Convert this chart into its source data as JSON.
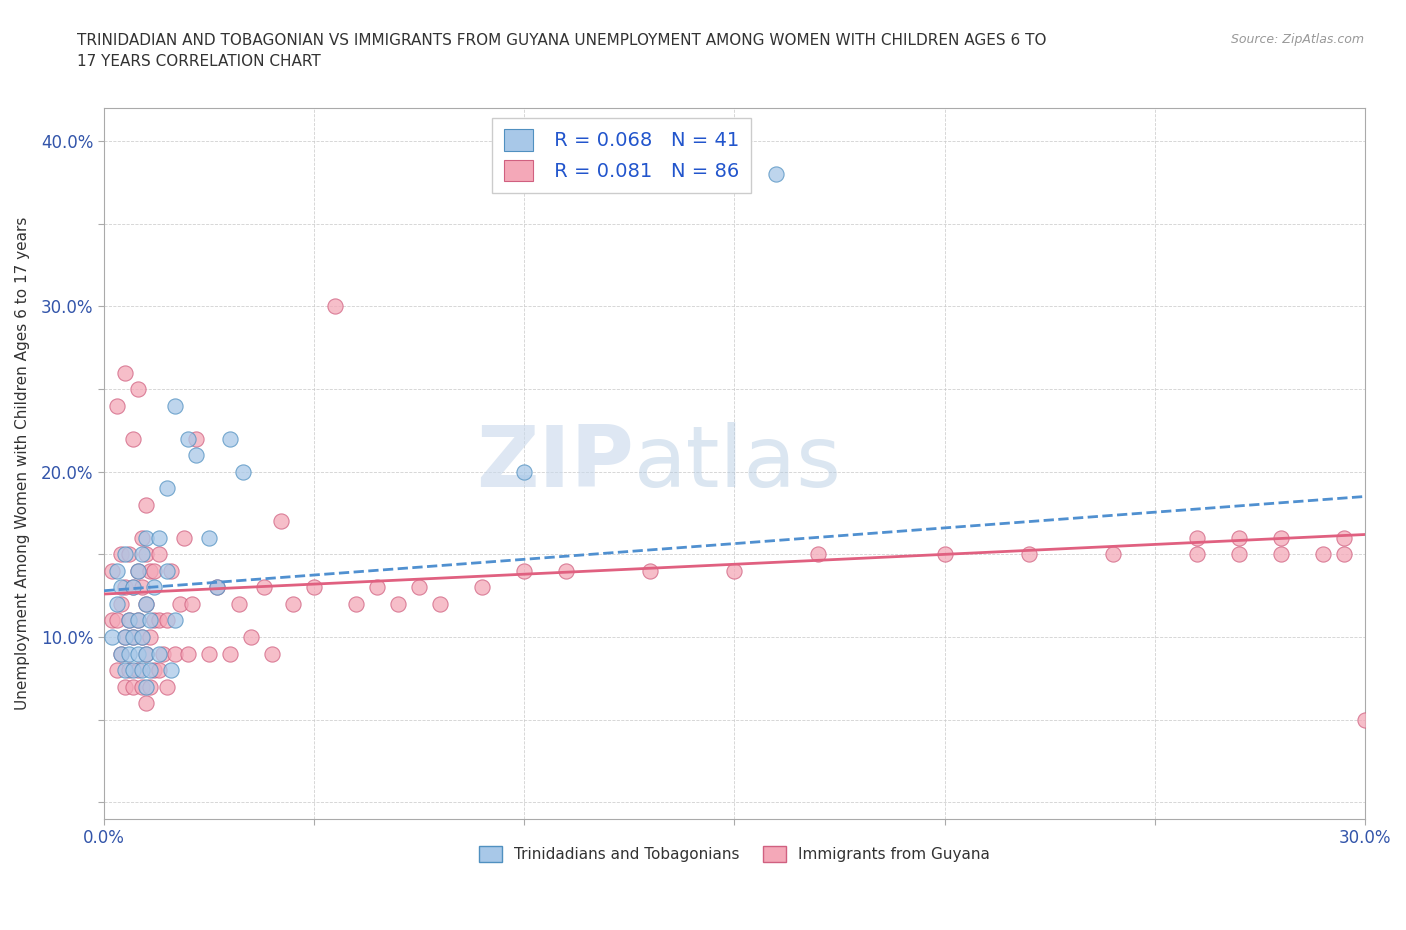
{
  "title": "TRINIDADIAN AND TOBAGONIAN VS IMMIGRANTS FROM GUYANA UNEMPLOYMENT AMONG WOMEN WITH CHILDREN AGES 6 TO\n17 YEARS CORRELATION CHART",
  "source": "Source: ZipAtlas.com",
  "ylabel": "Unemployment Among Women with Children Ages 6 to 17 years",
  "xlim": [
    0.0,
    0.3
  ],
  "ylim": [
    -0.01,
    0.42
  ],
  "xticks": [
    0.0,
    0.05,
    0.1,
    0.15,
    0.2,
    0.25,
    0.3
  ],
  "yticks": [
    0.0,
    0.05,
    0.1,
    0.15,
    0.2,
    0.25,
    0.3,
    0.35,
    0.4
  ],
  "xtick_labels": [
    "0.0%",
    "",
    "",
    "",
    "",
    "",
    "30.0%"
  ],
  "ytick_labels": [
    "",
    "",
    "10.0%",
    "",
    "20.0%",
    "",
    "30.0%",
    "",
    "40.0%"
  ],
  "watermark_zip": "ZIP",
  "watermark_atlas": "atlas",
  "legend_r1": "R = 0.068",
  "legend_n1": "N = 41",
  "legend_r2": "R = 0.081",
  "legend_n2": "N = 86",
  "color_blue": "#a8c8e8",
  "color_pink": "#f4a8b8",
  "color_blue_edge": "#5090c0",
  "color_pink_edge": "#d06080",
  "color_trend_blue": "#5090d0",
  "color_trend_pink": "#e06080",
  "trend_blue_y0": 0.128,
  "trend_blue_y1": 0.185,
  "trend_pink_y0": 0.126,
  "trend_pink_y1": 0.162,
  "blue_x": [
    0.002,
    0.003,
    0.003,
    0.004,
    0.004,
    0.005,
    0.005,
    0.005,
    0.006,
    0.006,
    0.007,
    0.007,
    0.007,
    0.008,
    0.008,
    0.008,
    0.009,
    0.009,
    0.009,
    0.01,
    0.01,
    0.01,
    0.01,
    0.011,
    0.011,
    0.012,
    0.013,
    0.013,
    0.015,
    0.015,
    0.016,
    0.017,
    0.017,
    0.02,
    0.022,
    0.025,
    0.027,
    0.03,
    0.033,
    0.1,
    0.16
  ],
  "blue_y": [
    0.1,
    0.12,
    0.14,
    0.09,
    0.13,
    0.08,
    0.1,
    0.15,
    0.09,
    0.11,
    0.08,
    0.1,
    0.13,
    0.09,
    0.11,
    0.14,
    0.08,
    0.1,
    0.15,
    0.07,
    0.09,
    0.12,
    0.16,
    0.08,
    0.11,
    0.13,
    0.09,
    0.16,
    0.14,
    0.19,
    0.08,
    0.11,
    0.24,
    0.22,
    0.21,
    0.16,
    0.13,
    0.22,
    0.2,
    0.2,
    0.38
  ],
  "pink_x": [
    0.002,
    0.002,
    0.003,
    0.003,
    0.003,
    0.004,
    0.004,
    0.004,
    0.005,
    0.005,
    0.005,
    0.005,
    0.006,
    0.006,
    0.006,
    0.007,
    0.007,
    0.007,
    0.007,
    0.008,
    0.008,
    0.008,
    0.008,
    0.009,
    0.009,
    0.009,
    0.009,
    0.01,
    0.01,
    0.01,
    0.01,
    0.01,
    0.011,
    0.011,
    0.011,
    0.012,
    0.012,
    0.012,
    0.013,
    0.013,
    0.013,
    0.014,
    0.015,
    0.015,
    0.016,
    0.017,
    0.018,
    0.019,
    0.02,
    0.021,
    0.022,
    0.025,
    0.027,
    0.03,
    0.032,
    0.035,
    0.038,
    0.04,
    0.042,
    0.045,
    0.05,
    0.055,
    0.06,
    0.065,
    0.07,
    0.075,
    0.08,
    0.09,
    0.1,
    0.11,
    0.13,
    0.15,
    0.17,
    0.2,
    0.22,
    0.24,
    0.26,
    0.27,
    0.28,
    0.29,
    0.295,
    0.3,
    0.295,
    0.28,
    0.27,
    0.26
  ],
  "pink_y": [
    0.11,
    0.14,
    0.08,
    0.11,
    0.24,
    0.09,
    0.12,
    0.15,
    0.07,
    0.1,
    0.13,
    0.26,
    0.08,
    0.11,
    0.15,
    0.07,
    0.1,
    0.13,
    0.22,
    0.08,
    0.11,
    0.14,
    0.25,
    0.07,
    0.1,
    0.13,
    0.16,
    0.06,
    0.09,
    0.12,
    0.15,
    0.18,
    0.07,
    0.1,
    0.14,
    0.08,
    0.11,
    0.14,
    0.08,
    0.11,
    0.15,
    0.09,
    0.07,
    0.11,
    0.14,
    0.09,
    0.12,
    0.16,
    0.09,
    0.12,
    0.22,
    0.09,
    0.13,
    0.09,
    0.12,
    0.1,
    0.13,
    0.09,
    0.17,
    0.12,
    0.13,
    0.3,
    0.12,
    0.13,
    0.12,
    0.13,
    0.12,
    0.13,
    0.14,
    0.14,
    0.14,
    0.14,
    0.15,
    0.15,
    0.15,
    0.15,
    0.15,
    0.15,
    0.15,
    0.15,
    0.15,
    0.05,
    0.16,
    0.16,
    0.16,
    0.16
  ]
}
